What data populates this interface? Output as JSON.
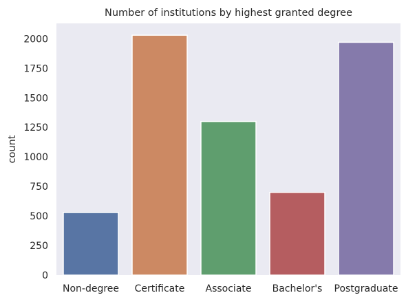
{
  "chart_data": {
    "type": "bar",
    "title": "Number of institutions by highest granted degree",
    "xlabel": "",
    "ylabel": "count",
    "categories": [
      "Non-degree",
      "Certificate",
      "Associate",
      "Bachelor's",
      "Postgraduate"
    ],
    "values": [
      530,
      2030,
      1300,
      700,
      1970
    ],
    "colors": [
      "#5875a4",
      "#cc8963",
      "#5f9e6e",
      "#b55d60",
      "#857aab"
    ],
    "ylim": [
      0,
      2130
    ],
    "yticks": [
      0,
      250,
      500,
      750,
      1000,
      1250,
      1500,
      1750,
      2000
    ],
    "ytick_labels": [
      "0",
      "250",
      "500",
      "750",
      "1000",
      "1250",
      "1500",
      "1750",
      "2000"
    ],
    "grid": false,
    "background": "#eaeaf2"
  }
}
